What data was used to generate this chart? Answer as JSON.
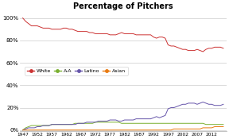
{
  "title": "Percentage of Pitchers",
  "title_fontsize": 7,
  "years": [
    1947,
    1948,
    1949,
    1950,
    1951,
    1952,
    1953,
    1954,
    1955,
    1956,
    1957,
    1958,
    1959,
    1960,
    1961,
    1962,
    1963,
    1964,
    1965,
    1966,
    1967,
    1968,
    1969,
    1970,
    1971,
    1972,
    1973,
    1974,
    1975,
    1976,
    1977,
    1978,
    1979,
    1980,
    1981,
    1982,
    1983,
    1984,
    1985,
    1986,
    1987,
    1988,
    1989,
    1990,
    1991,
    1992,
    1993,
    1994,
    1995,
    1996,
    1997,
    1998,
    1999,
    2000,
    2001,
    2002,
    2003,
    2004,
    2005,
    2006,
    2007,
    2008,
    2009,
    2010,
    2011,
    2012,
    2013,
    2014,
    2015,
    2016
  ],
  "white": [
    100,
    97,
    95,
    93,
    93,
    93,
    92,
    91,
    91,
    91,
    90,
    90,
    90,
    90,
    91,
    91,
    90,
    90,
    89,
    88,
    88,
    88,
    88,
    87,
    87,
    86,
    86,
    86,
    86,
    86,
    85,
    85,
    85,
    86,
    87,
    86,
    86,
    86,
    86,
    85,
    85,
    85,
    85,
    85,
    85,
    83,
    82,
    83,
    83,
    82,
    76,
    75,
    75,
    74,
    73,
    72,
    72,
    71,
    71,
    71,
    72,
    71,
    70,
    72,
    73,
    73,
    74,
    74,
    74,
    73
  ],
  "aa": [
    0,
    2,
    3,
    4,
    4,
    4,
    4,
    4,
    4,
    4,
    5,
    5,
    5,
    5,
    5,
    5,
    5,
    5,
    6,
    6,
    6,
    6,
    6,
    6,
    6,
    7,
    7,
    7,
    7,
    7,
    7,
    7,
    7,
    7,
    6,
    6,
    6,
    6,
    6,
    6,
    6,
    6,
    6,
    6,
    6,
    6,
    6,
    6,
    6,
    6,
    6,
    6,
    6,
    6,
    6,
    6,
    6,
    6,
    6,
    6,
    6,
    6,
    6,
    5,
    5,
    5,
    5,
    5,
    5,
    5
  ],
  "latino": [
    0,
    1,
    2,
    2,
    2,
    3,
    3,
    4,
    4,
    4,
    5,
    5,
    5,
    5,
    5,
    5,
    5,
    5,
    5,
    6,
    6,
    6,
    7,
    7,
    7,
    7,
    8,
    8,
    8,
    8,
    9,
    9,
    9,
    8,
    8,
    9,
    9,
    9,
    9,
    10,
    10,
    10,
    10,
    10,
    10,
    11,
    12,
    11,
    12,
    13,
    19,
    20,
    20,
    21,
    22,
    23,
    23,
    24,
    24,
    24,
    23,
    24,
    25,
    24,
    23,
    23,
    22,
    22,
    22,
    23
  ],
  "asian": [
    0,
    0,
    0,
    0,
    0,
    0,
    0,
    0,
    0,
    0,
    0,
    0,
    0,
    0,
    0,
    0,
    0,
    0,
    0,
    0,
    0,
    0,
    0,
    0,
    0,
    0,
    0,
    0,
    0,
    0,
    0,
    0,
    0,
    0,
    0,
    0,
    0,
    0,
    0,
    0,
    0,
    0,
    0,
    0,
    0,
    0,
    0,
    0,
    0,
    0,
    0,
    0,
    1,
    1,
    1,
    1,
    1,
    1,
    1,
    1,
    1,
    1,
    2,
    2,
    2,
    2,
    3,
    3,
    3,
    3
  ],
  "white_color": "#cc3333",
  "aa_color": "#7ab030",
  "latino_color": "#6655aa",
  "asian_color": "#e87a10",
  "background_color": "#ffffff",
  "plot_bg_color": "#ffffff",
  "grid_color": "#cccccc",
  "yticks": [
    0,
    20,
    40,
    60,
    80,
    100
  ],
  "ylim": [
    -1,
    105
  ],
  "xlim": [
    1946,
    2017
  ],
  "xtick_years": [
    1947,
    1952,
    1957,
    1962,
    1967,
    1972,
    1977,
    1982,
    1987,
    1992,
    1997,
    2002,
    2007,
    2012
  ],
  "legend_labels": [
    "White",
    "A-A",
    "Latino",
    "Asian"
  ]
}
